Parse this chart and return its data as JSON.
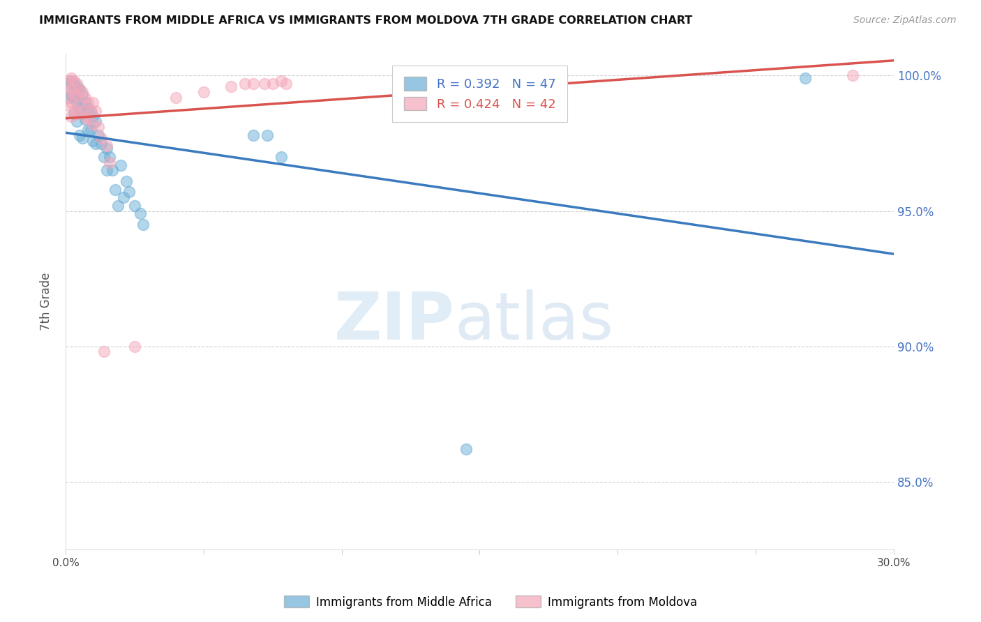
{
  "title": "IMMIGRANTS FROM MIDDLE AFRICA VS IMMIGRANTS FROM MOLDOVA 7TH GRADE CORRELATION CHART",
  "source": "Source: ZipAtlas.com",
  "ylabel": "7th Grade",
  "blue_label": "Immigrants from Middle Africa",
  "pink_label": "Immigrants from Moldova",
  "blue_R": 0.392,
  "blue_N": 47,
  "pink_R": 0.424,
  "pink_N": 42,
  "xmin": 0.0,
  "xmax": 0.3,
  "ymin": 0.825,
  "ymax": 1.008,
  "blue_color": "#6baed6",
  "pink_color": "#f4a6b8",
  "blue_line_color": "#3a7abf",
  "pink_line_color": "#d9534f",
  "watermark_zip": "ZIP",
  "watermark_atlas": "atlas",
  "blue_points_x": [
    0.001,
    0.001,
    0.002,
    0.002,
    0.003,
    0.003,
    0.003,
    0.004,
    0.004,
    0.004,
    0.005,
    0.005,
    0.005,
    0.006,
    0.006,
    0.006,
    0.007,
    0.007,
    0.008,
    0.008,
    0.009,
    0.009,
    0.01,
    0.01,
    0.011,
    0.011,
    0.012,
    0.013,
    0.014,
    0.015,
    0.015,
    0.016,
    0.017,
    0.018,
    0.019,
    0.02,
    0.021,
    0.022,
    0.023,
    0.025,
    0.027,
    0.028,
    0.068,
    0.073,
    0.078,
    0.145,
    0.268
  ],
  "blue_points_y": [
    0.997,
    0.992,
    0.998,
    0.993,
    0.997,
    0.992,
    0.986,
    0.996,
    0.99,
    0.983,
    0.995,
    0.988,
    0.978,
    0.993,
    0.986,
    0.977,
    0.99,
    0.984,
    0.988,
    0.98,
    0.987,
    0.98,
    0.985,
    0.976,
    0.983,
    0.975,
    0.978,
    0.975,
    0.97,
    0.973,
    0.965,
    0.97,
    0.965,
    0.958,
    0.952,
    0.967,
    0.955,
    0.961,
    0.957,
    0.952,
    0.949,
    0.945,
    0.978,
    0.978,
    0.97,
    0.862,
    0.999
  ],
  "pink_points_x": [
    0.001,
    0.001,
    0.001,
    0.002,
    0.002,
    0.002,
    0.002,
    0.003,
    0.003,
    0.003,
    0.004,
    0.004,
    0.004,
    0.005,
    0.005,
    0.006,
    0.006,
    0.007,
    0.007,
    0.008,
    0.008,
    0.009,
    0.01,
    0.01,
    0.011,
    0.012,
    0.013,
    0.014,
    0.015,
    0.016,
    0.025,
    0.04,
    0.05,
    0.06,
    0.065,
    0.068,
    0.072,
    0.075,
    0.078,
    0.08,
    0.16,
    0.285
  ],
  "pink_points_y": [
    0.998,
    0.994,
    0.989,
    0.999,
    0.995,
    0.99,
    0.985,
    0.998,
    0.993,
    0.987,
    0.997,
    0.993,
    0.986,
    0.995,
    0.989,
    0.994,
    0.987,
    0.992,
    0.985,
    0.99,
    0.984,
    0.987,
    0.99,
    0.982,
    0.987,
    0.981,
    0.977,
    0.898,
    0.974,
    0.968,
    0.9,
    0.992,
    0.994,
    0.996,
    0.997,
    0.997,
    0.997,
    0.997,
    0.998,
    0.997,
    0.998,
    1.0
  ],
  "yticks": [
    0.85,
    0.9,
    0.95,
    1.0
  ],
  "ytick_labels": [
    "85.0%",
    "90.0%",
    "95.0%",
    "100.0%"
  ],
  "xticks": [
    0.0,
    0.05,
    0.1,
    0.15,
    0.2,
    0.25,
    0.3
  ],
  "xtick_labels": [
    "0.0%",
    "",
    "",
    "",
    "",
    "",
    "30.0%"
  ]
}
